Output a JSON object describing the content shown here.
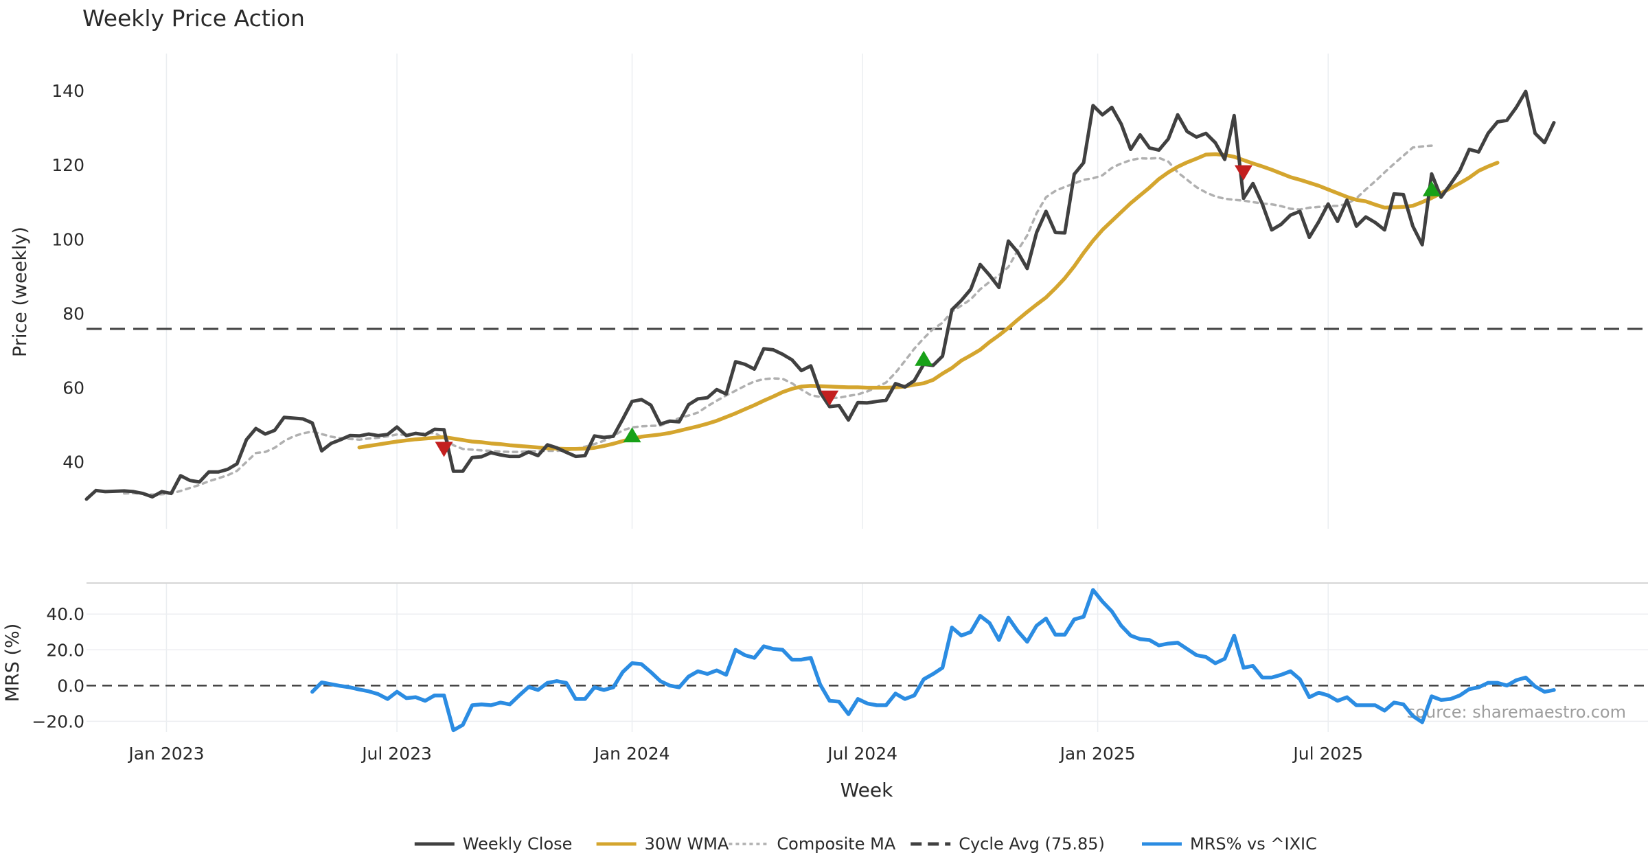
{
  "chart_data": [
    {
      "type": "line",
      "title": "Weekly Price Action",
      "ylabel": "Price (weekly)",
      "ylim": [
        22,
        150
      ],
      "yticks": [
        40,
        60,
        80,
        100,
        120,
        140
      ],
      "ytick_labels": [
        "40",
        "60",
        "80",
        "100",
        "120",
        "140"
      ],
      "grid": true,
      "x_range": [
        0,
        166
      ],
      "series": [
        {
          "name": "Weekly Close",
          "color": "#404040",
          "style": "solid",
          "start_index": 0,
          "values": [
            30,
            32.3,
            32,
            32.1,
            32.2,
            32,
            31.5,
            30.6,
            32,
            31.5,
            36.3,
            35,
            34.6,
            37.3,
            37.3,
            38,
            39.5,
            46,
            49,
            47.5,
            48.5,
            52,
            51.8,
            51.6,
            50.5,
            43,
            45,
            46,
            47.1,
            47,
            47.5,
            47.1,
            47.4,
            49.4,
            47.1,
            47.7,
            47.3,
            48.8,
            48.7,
            37.5,
            37.5,
            41.2,
            41.4,
            42.5,
            41.9,
            41.5,
            41.5,
            42.7,
            41.7,
            44.6,
            43.8,
            42.6,
            41.5,
            41.7,
            47,
            46.6,
            46.9,
            51.5,
            56.3,
            56.8,
            55.3,
            50.2,
            51,
            50.8,
            55.4,
            57,
            57.3,
            59.5,
            58.3,
            67,
            66.3,
            65,
            70.5,
            70.2,
            69,
            67.5,
            64.6,
            65.9,
            58.7,
            54.9,
            55.2,
            51.3,
            56,
            55.9,
            56.3,
            56.6,
            61.1,
            60.2,
            61.9,
            66.3,
            66,
            68.5,
            81,
            83.5,
            86.5,
            93.2,
            90.3,
            87,
            99.5,
            96.5,
            92.1,
            101.8,
            107.5,
            101.8,
            101.7,
            117.5,
            120.6,
            136,
            133.5,
            135.5,
            131,
            124.2,
            128.1,
            124.6,
            124,
            127,
            133.5,
            129,
            127.5,
            128.5,
            126,
            121.5,
            133.3,
            111,
            115,
            109.5,
            102.5,
            104,
            106.5,
            107.5,
            100.5,
            104.7,
            109.5,
            104.8,
            110.5,
            103.5,
            106,
            104.5,
            102.5,
            112.2,
            112,
            103.5,
            98.5,
            117.6,
            111.3,
            114.8,
            118.5,
            124.2,
            123.5,
            128.5,
            131.6,
            132,
            135.5,
            139.8,
            128.5,
            126,
            131.4
          ]
        },
        {
          "name": "30W WMA",
          "color": "#d4a52e",
          "style": "solid",
          "start_index": 29,
          "values": [
            43.9,
            44.3,
            44.7,
            45.1,
            45.5,
            45.8,
            46.1,
            46.3,
            46.5,
            46.7,
            46.3,
            45.9,
            45.5,
            45.3,
            45,
            44.8,
            44.5,
            44.3,
            44.1,
            43.9,
            43.7,
            43.6,
            43.5,
            43.5,
            43.6,
            43.8,
            44.3,
            44.9,
            45.6,
            46.3,
            46.8,
            47.1,
            47.4,
            47.8,
            48.4,
            49,
            49.6,
            50.3,
            51.1,
            52.1,
            53.1,
            54.2,
            55.3,
            56.5,
            57.6,
            58.8,
            59.7,
            60.3,
            60.5,
            60.4,
            60.3,
            60.2,
            60.1,
            60.1,
            60,
            60,
            60,
            60.1,
            60.3,
            60.8,
            61.2,
            62.1,
            63.8,
            65.3,
            67.3,
            68.7,
            70.2,
            72.3,
            74.1,
            76.1,
            78.3,
            80.4,
            82.4,
            84.3,
            86.8,
            89.5,
            92.7,
            96.3,
            99.6,
            102.5,
            104.9,
            107.3,
            109.7,
            111.8,
            113.9,
            116.2,
            118,
            119.5,
            120.7,
            121.7,
            122.8,
            122.9,
            122.7,
            122.2,
            121.3,
            120.4,
            119.6,
            118.7,
            117.7,
            116.7,
            116,
            115.2,
            114.4,
            113.4,
            112.4,
            111.4,
            110.6,
            110.2,
            109.3,
            108.5,
            108.6,
            108.7,
            109,
            110,
            111.1,
            112.4,
            113.7,
            115.1,
            116.6,
            118.4,
            119.6,
            120.6
          ]
        },
        {
          "name": "Composite MA",
          "color": "#b0b0b0",
          "style": "dotted",
          "start_index": 4,
          "values": [
            31.5,
            31.6,
            31.4,
            31.2,
            31.3,
            31.5,
            32.2,
            33,
            33.8,
            34.8,
            35.6,
            36.4,
            37.6,
            40,
            42.4,
            42.7,
            43.8,
            45.6,
            46.9,
            47.7,
            48.2,
            47.5,
            46.8,
            46.4,
            46.2,
            46,
            46.3,
            46.5,
            46.9,
            47.4,
            47.3,
            47.5,
            47.7,
            47.8,
            46.4,
            44.5,
            43.5,
            43.3,
            43.1,
            43,
            42.8,
            42.7,
            42.7,
            42.9,
            42.9,
            43,
            43,
            43.1,
            43.5,
            44.1,
            44.8,
            45.7,
            47,
            48.5,
            49.3,
            49.6,
            49.7,
            49.8,
            50.8,
            51.8,
            52.5,
            53.3,
            55,
            56.5,
            57.9,
            59.2,
            60.5,
            61.7,
            62.3,
            62.5,
            62.4,
            61.2,
            59.5,
            58,
            57.5,
            57.3,
            57.3,
            57.8,
            58.2,
            59,
            60.1,
            61.4,
            64,
            67.2,
            70.5,
            73.3,
            75.8,
            77.5,
            80.5,
            82.1,
            83.8,
            86.5,
            88.5,
            90.3,
            92.5,
            97,
            101,
            107,
            111.3,
            113,
            114.1,
            115,
            116,
            116.4,
            117.2,
            119.2,
            120.4,
            121.3,
            121.8,
            121.7,
            121.9,
            120.9,
            118,
            116,
            114,
            112.6,
            111.5,
            110.9,
            110.6,
            110.4,
            110,
            109.6,
            109.4,
            108.9,
            108.2,
            108,
            108.5,
            108.7,
            108.9,
            109,
            109.5,
            111,
            113.4,
            115.6,
            118,
            120.3,
            122.5,
            124.7,
            125,
            125.2
          ]
        }
      ],
      "reference_line": {
        "name": "Cycle Avg (75.85)",
        "value": 75.85,
        "color": "#404040",
        "style": "dashed"
      },
      "signals": [
        {
          "type": "sell",
          "index": 38,
          "value": 43.5,
          "color": "#c31f1f"
        },
        {
          "type": "buy",
          "index": 58,
          "value": 47.2,
          "color": "#18a118"
        },
        {
          "type": "sell",
          "index": 79,
          "value": 57.3,
          "color": "#c31f1f"
        },
        {
          "type": "buy",
          "index": 89,
          "value": 67.8,
          "color": "#18a118"
        },
        {
          "type": "sell",
          "index": 123,
          "value": 118,
          "color": "#c31f1f"
        },
        {
          "type": "buy",
          "index": 143,
          "value": 113.5,
          "color": "#18a118"
        }
      ]
    },
    {
      "type": "line",
      "title": "",
      "ylabel": "MRS (%)",
      "xlabel": "Week",
      "ylim": [
        -26,
        57
      ],
      "yticks": [
        40,
        20,
        0,
        -20
      ],
      "ytick_labels": [
        "40.0",
        "20.0",
        "0.0",
        "−20.0"
      ],
      "grid": true,
      "x_range": [
        0,
        166
      ],
      "xtick_indices": [
        8.5,
        33,
        58,
        82.5,
        107.5,
        132
      ],
      "xtick_labels": [
        "Jan 2023",
        "Jul 2023",
        "Jan 2024",
        "Jul 2024",
        "Jan 2025",
        "Jul 2025"
      ],
      "series": [
        {
          "name": "MRS% vs ^IXIC",
          "color": "#2b8ce2",
          "style": "solid",
          "start_index": 24,
          "values": [
            -3.5,
            1.8,
            0.8,
            -0.2,
            -1,
            -2.2,
            -3.2,
            -4.8,
            -7.5,
            -3.5,
            -7,
            -6.5,
            -8.5,
            -5.5,
            -5.5,
            -25,
            -22,
            -11,
            -10.5,
            -11,
            -9.5,
            -10.5,
            -5.5,
            -0.8,
            -2.5,
            1.5,
            2.5,
            1.5,
            -7.5,
            -7.5,
            -1,
            -2.5,
            -1,
            7.5,
            12.5,
            12,
            7.5,
            2.5,
            0,
            -1,
            5,
            8,
            6.5,
            8.5,
            6,
            20,
            17,
            15.5,
            22,
            20.5,
            20,
            14.5,
            14.5,
            15.5,
            0.5,
            -8.5,
            -9,
            -16,
            -7.5,
            -10,
            -11,
            -11,
            -4.5,
            -7.5,
            -5.5,
            3.5,
            6.5,
            10,
            32.5,
            28,
            30,
            39,
            35,
            25.5,
            38,
            30.5,
            24.5,
            33.5,
            37.5,
            28.5,
            28.5,
            37,
            38.5,
            53.5,
            47,
            41.5,
            33.5,
            28,
            26,
            25.5,
            22.5,
            23.5,
            24,
            20.5,
            17,
            16,
            12.5,
            15,
            28,
            10,
            11,
            4.5,
            4.5,
            6,
            8,
            3.5,
            -6.5,
            -4,
            -5.5,
            -8.5,
            -6.5,
            -11,
            -11,
            -11,
            -14,
            -9.5,
            -10.5,
            -17,
            -20.5,
            -6,
            -8,
            -7.5,
            -5.5,
            -2,
            -1,
            1.5,
            1.5,
            0,
            3,
            4.5,
            -0.5,
            -3.5,
            -2.5
          ]
        }
      ],
      "reference_line": {
        "name": "",
        "value": 0,
        "color": "#404040",
        "style": "dashed"
      },
      "source_note": "source: sharemaestro.com"
    }
  ],
  "legend": [
    {
      "label": "Weekly Close",
      "color": "#404040",
      "style": "solid"
    },
    {
      "label": "30W WMA",
      "color": "#d4a52e",
      "style": "solid"
    },
    {
      "label": "Composite MA",
      "color": "#b0b0b0",
      "style": "dotted"
    },
    {
      "label": "Cycle Avg (75.85)",
      "color": "#404040",
      "style": "dashed"
    },
    {
      "label": "MRS% vs ^IXIC",
      "color": "#2b8ce2",
      "style": "solid"
    }
  ]
}
